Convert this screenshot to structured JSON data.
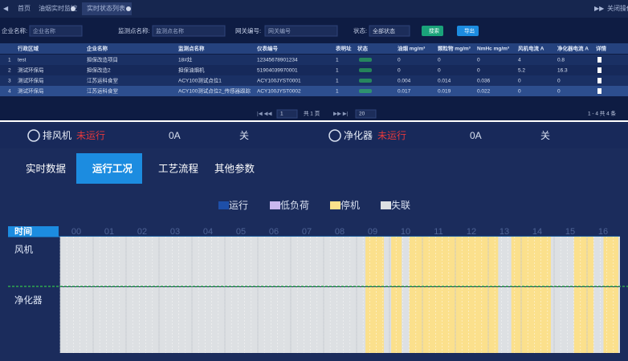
{
  "nav": {
    "items": [
      "首页",
      "油烟实时监控",
      "实时状态列表"
    ],
    "right": "关闭操作"
  },
  "filters": {
    "company_label": "企业名称:",
    "company_placeholder": "企业名称",
    "point_label": "监测点名称:",
    "point_placeholder": "监测点名称",
    "gateway_label": "网关编号:",
    "gateway_placeholder": "网关编号",
    "status_label": "状态:",
    "status_value": "全部状态",
    "search": "搜索",
    "export": "导出"
  },
  "table": {
    "headers": [
      "行政区域",
      "企业名称",
      "监测点名称",
      "仪表编号",
      "表明址",
      "状态",
      "油烟 mg/m³",
      "颗粒物 mg/m³",
      "NmHc mg/m³",
      "风机电流 A",
      "净化器电流 A",
      "详情"
    ],
    "rows": [
      {
        "index": "1",
        "cells": [
          "test",
          "担保改造项目",
          "18#灶",
          "12345678901234",
          "1",
          "0",
          "0",
          "0",
          "4",
          "0.8"
        ]
      },
      {
        "index": "2",
        "cells": [
          "测试环保局",
          "担保改造2",
          "担保油烟机",
          "51904039970001",
          "1",
          "0",
          "0",
          "0",
          "5.2",
          "16.3"
        ]
      },
      {
        "index": "3",
        "cells": [
          "测试环保局",
          "江苏运科食堂",
          "ACY100测试点位1",
          "ACY100JYST0001",
          "1",
          "0.004",
          "0.014",
          "0.036",
          "0",
          "0"
        ]
      },
      {
        "index": "4",
        "cells": [
          "测试环保局",
          "江苏运科食堂",
          "ACY100测试点位2_传感器跟踪",
          "ACY100JYST0002",
          "1",
          "0.017",
          "0.019",
          "0.022",
          "0",
          "0"
        ]
      }
    ]
  },
  "pagination": {
    "page": "1",
    "total_pages": "共 1 页",
    "page_size": "20",
    "summary": "1 - 4  共 4 条"
  },
  "status_bar": [
    {
      "name": "排风机",
      "state": "未运行",
      "current": "0A",
      "switch": "关"
    },
    {
      "name": "净化器",
      "state": "未运行",
      "current": "0A",
      "switch": "关"
    }
  ],
  "tabs": {
    "items": [
      "实时数据",
      "运行工况",
      "工艺流程",
      "其他参数"
    ],
    "active": 1
  },
  "timeline": {
    "legend": [
      {
        "name": "运行",
        "color": "#1e4fa8"
      },
      {
        "name": "低负荷",
        "color": "#c9b8f0"
      },
      {
        "name": "停机",
        "color": "#fbe08c"
      },
      {
        "name": "失联",
        "color": "#dde0e3"
      }
    ],
    "axis_label": "时间",
    "xlim": [
      0,
      17
    ],
    "xticks": [
      {
        "value": 0,
        "label": "00"
      },
      {
        "value": 1,
        "label": "01"
      },
      {
        "value": 2,
        "label": "02"
      },
      {
        "value": 3,
        "label": "03"
      },
      {
        "value": 4,
        "label": "04"
      },
      {
        "value": 5,
        "label": "05"
      },
      {
        "value": 6,
        "label": "06"
      },
      {
        "value": 7,
        "label": "07"
      },
      {
        "value": 8,
        "label": "08"
      },
      {
        "value": 9,
        "label": "09"
      },
      {
        "value": 10,
        "label": "10"
      },
      {
        "value": 11,
        "label": "11"
      },
      {
        "value": 12,
        "label": "12"
      },
      {
        "value": 13,
        "label": "13"
      },
      {
        "value": 14,
        "label": "14"
      },
      {
        "value": 15,
        "label": "15"
      },
      {
        "value": 16,
        "label": "16"
      }
    ],
    "background_status": "失联",
    "rows": [
      {
        "label": "风机",
        "segments": [
          {
            "start": 9.27,
            "end": 9.83,
            "status": "停机"
          },
          {
            "start": 10.05,
            "end": 10.37,
            "status": "停机"
          },
          {
            "start": 10.6,
            "end": 13.3,
            "status": "停机"
          },
          {
            "start": 13.7,
            "end": 14.9,
            "status": "停机"
          },
          {
            "start": 15.6,
            "end": 16.2,
            "status": "停机"
          },
          {
            "start": 16.5,
            "end": 16.95,
            "status": "停机"
          }
        ]
      },
      {
        "label": "净化器",
        "segments": [
          {
            "start": 9.27,
            "end": 9.83,
            "status": "停机"
          },
          {
            "start": 10.05,
            "end": 10.37,
            "status": "停机"
          },
          {
            "start": 10.6,
            "end": 13.3,
            "status": "停机"
          },
          {
            "start": 13.7,
            "end": 14.9,
            "status": "停机"
          },
          {
            "start": 15.6,
            "end": 16.2,
            "status": "停机"
          },
          {
            "start": 16.5,
            "end": 16.95,
            "status": "停机"
          }
        ]
      }
    ]
  }
}
